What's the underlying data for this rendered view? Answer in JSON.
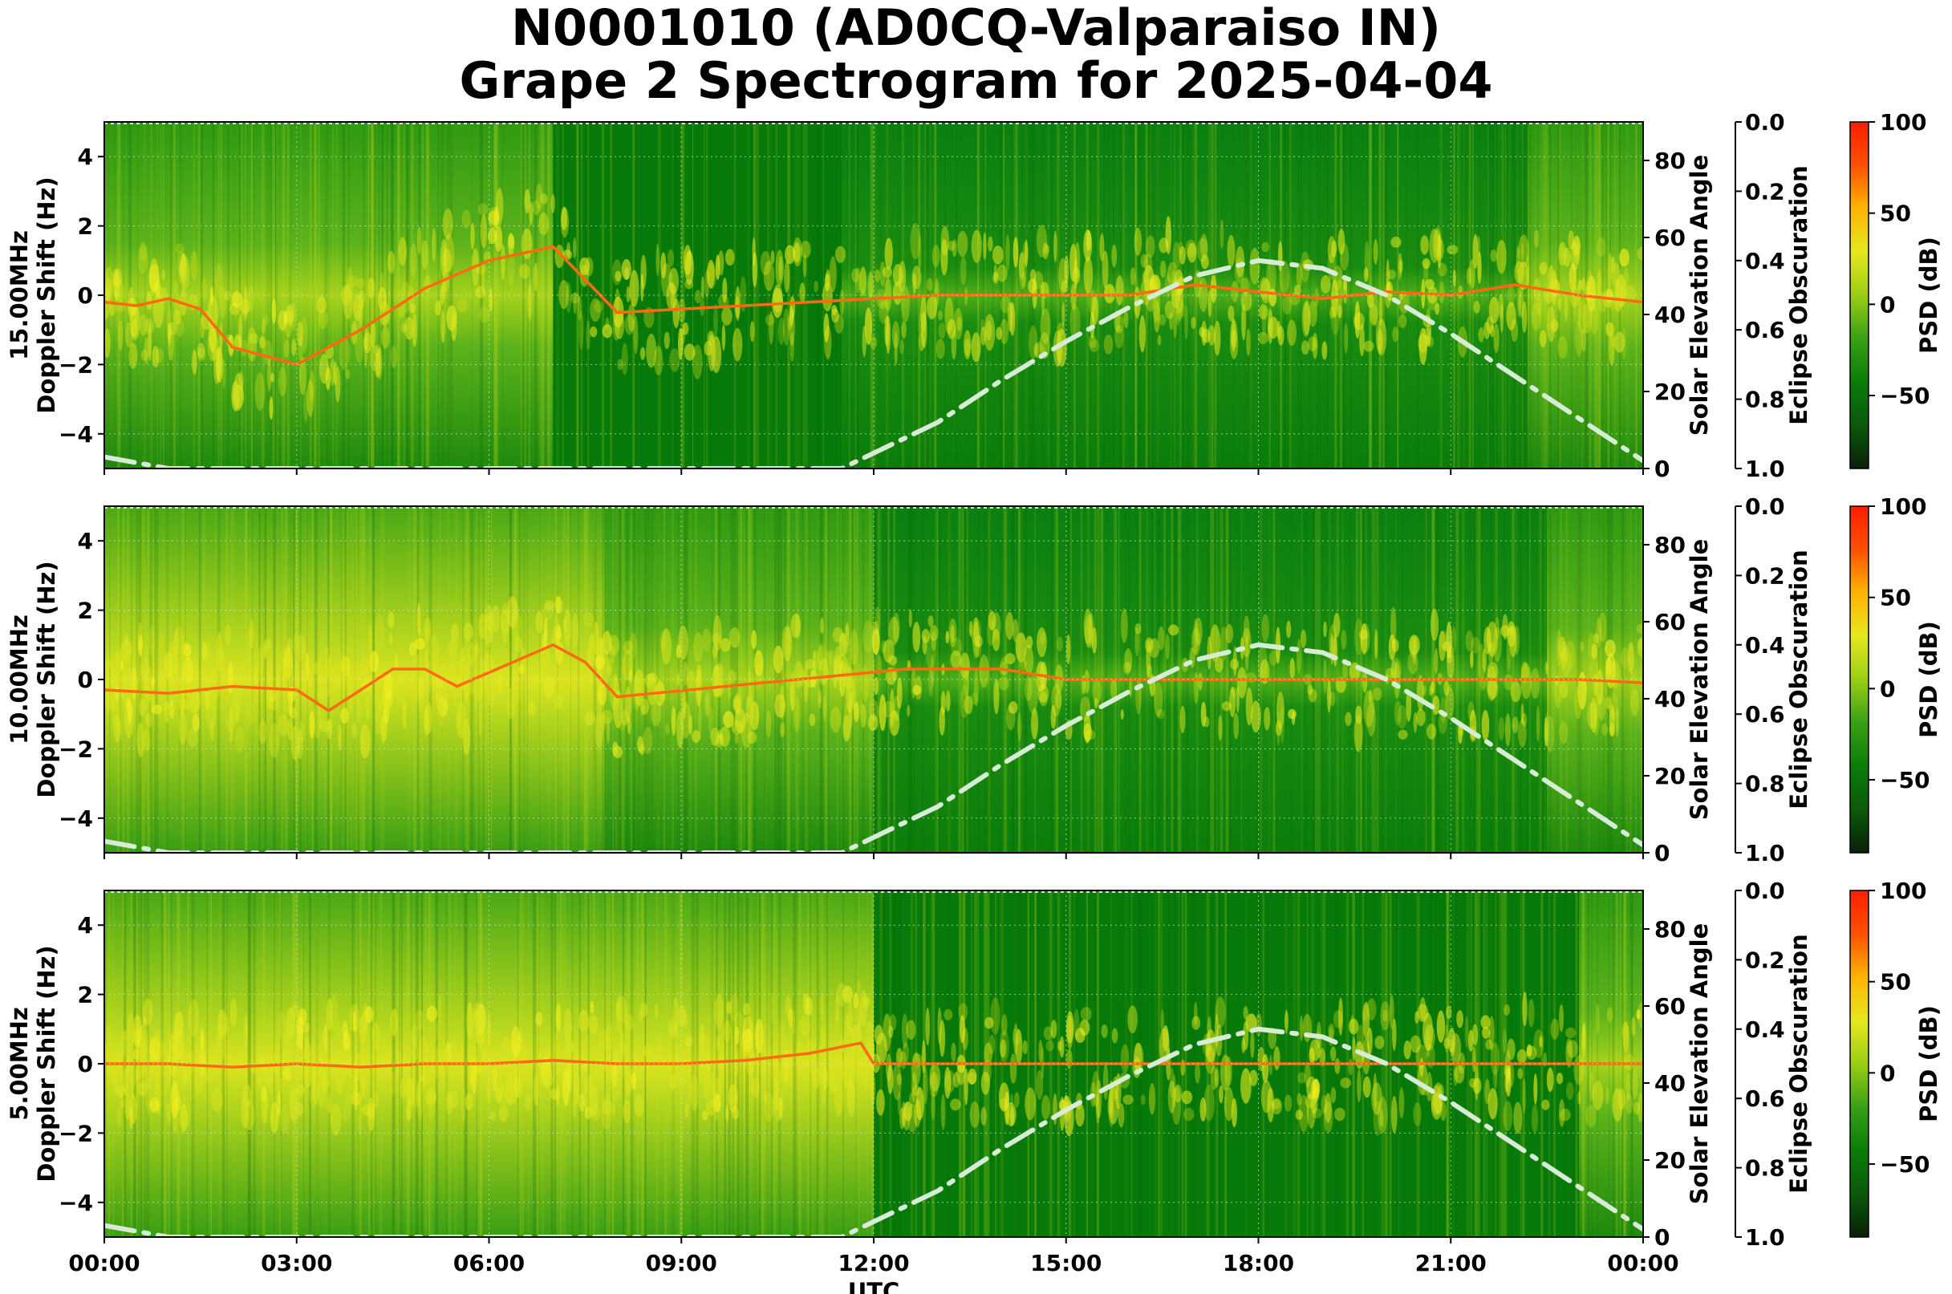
{
  "title": {
    "line1": "N0001010 (AD0CQ-Valparaiso IN)",
    "line2": "Grape 2 Spectrogram for 2025-04-04"
  },
  "colors": {
    "colormap": [
      "#0a1f0a",
      "#0b5a0b",
      "#0a7d0a",
      "#3aa014",
      "#9bcd14",
      "#e6e81e",
      "#ffb400",
      "#ff5000",
      "#ff1e00"
    ],
    "background_green": "#0a7d0a",
    "elevation_curve": "#d6ecd6",
    "signal_trace": "#ff6a10"
  },
  "chart_data": [
    {
      "type": "heatmap",
      "panel": "15.00MHz",
      "ylabel": "15.00MHz\nDoppler Shift (Hz)",
      "xlabel": "",
      "y2label": "Solar Elevation Angle",
      "y3label": "Eclipse Obscuration",
      "colorbar_label": "PSD (dB)",
      "xlim": [
        0,
        24
      ],
      "ylim": [
        -5,
        5
      ],
      "y2lim": [
        0,
        90
      ],
      "y3lim": [
        1.0,
        0.0
      ],
      "clim": [
        -90,
        100
      ],
      "x_ticks": [],
      "y_ticks": [
        "−4",
        "−2",
        "0",
        "2",
        "4"
      ],
      "y2_ticks": [
        "0",
        "20",
        "40",
        "60",
        "80"
      ],
      "y3_ticks": [
        "0.0",
        "0.2",
        "0.4",
        "0.6",
        "0.8",
        "1.0"
      ],
      "cbar_ticks": [
        "100",
        "50",
        "0",
        "−50"
      ],
      "solar_elevation": {
        "x": [
          0,
          1,
          11.5,
          13,
          14,
          15,
          16,
          17,
          18,
          19,
          20,
          21,
          22,
          23,
          24
        ],
        "y": [
          3,
          0,
          0,
          12,
          23,
          33,
          42,
          50,
          54,
          52,
          45,
          35,
          24,
          13,
          2
        ]
      },
      "ionosphere_mode": [
        [
          0,
          "night"
        ],
        [
          1.5,
          "night-dark"
        ],
        [
          7,
          "dark"
        ],
        [
          11.5,
          "day"
        ],
        [
          17.1,
          "day-busy"
        ],
        [
          22.2,
          "dusk"
        ]
      ],
      "trace": {
        "x": [
          0,
          0.5,
          1,
          1.5,
          2,
          3,
          4,
          5,
          6,
          7,
          8,
          13,
          14,
          15,
          16,
          17,
          18,
          19,
          20,
          21,
          22,
          23,
          24
        ],
        "y": [
          -0.2,
          -0.3,
          -0.1,
          -0.4,
          -1.5,
          -2,
          -1,
          0.2,
          1,
          1.4,
          -0.5,
          0,
          0,
          0,
          0,
          0.3,
          0.1,
          -0.1,
          0.1,
          0,
          0.3,
          0,
          -0.2
        ]
      }
    },
    {
      "type": "heatmap",
      "panel": "10.00MHz",
      "ylabel": "10.00MHz\nDoppler Shift (Hz)",
      "xlabel": "",
      "y2label": "Solar Elevation Angle",
      "y3label": "Eclipse Obscuration",
      "colorbar_label": "PSD (dB)",
      "xlim": [
        0,
        24
      ],
      "ylim": [
        -5,
        5
      ],
      "y2lim": [
        0,
        90
      ],
      "y3lim": [
        1.0,
        0.0
      ],
      "clim": [
        -90,
        100
      ],
      "x_ticks": [],
      "y_ticks": [
        "−4",
        "−2",
        "0",
        "2",
        "4"
      ],
      "y2_ticks": [
        "0",
        "20",
        "40",
        "60",
        "80"
      ],
      "y3_ticks": [
        "0.0",
        "0.2",
        "0.4",
        "0.6",
        "0.8",
        "1.0"
      ],
      "cbar_ticks": [
        "100",
        "50",
        "0",
        "−50"
      ],
      "solar_elevation": {
        "x": [
          0,
          1,
          11.5,
          13,
          14,
          15,
          16,
          17,
          18,
          19,
          20,
          21,
          22,
          23,
          24
        ],
        "y": [
          3,
          0,
          0,
          12,
          23,
          33,
          42,
          50,
          54,
          52,
          45,
          35,
          24,
          13,
          2
        ]
      },
      "ionosphere_mode": [
        [
          0,
          "night-bright"
        ],
        [
          7.8,
          "night"
        ],
        [
          12,
          "day"
        ],
        [
          22.5,
          "dusk"
        ]
      ],
      "trace": {
        "x": [
          0,
          1,
          2,
          3,
          3.5,
          4,
          4.5,
          5,
          5.5,
          7,
          7.5,
          8,
          12.5,
          13,
          14,
          15,
          16,
          17,
          18,
          19,
          20,
          21,
          22,
          23,
          24
        ],
        "y": [
          -0.3,
          -0.4,
          -0.2,
          -0.3,
          -0.9,
          -0.3,
          0.3,
          0.3,
          -0.2,
          1,
          0.5,
          -0.5,
          0.3,
          0.3,
          0.3,
          0,
          0,
          0,
          0,
          0,
          0,
          0,
          0,
          0,
          -0.1
        ]
      }
    },
    {
      "type": "heatmap",
      "panel": "5.00MHz",
      "ylabel": "5.00MHz\nDoppler Shift (Hz)",
      "xlabel": "UTC",
      "y2label": "Solar Elevation Angle",
      "y3label": "Eclipse Obscuration",
      "colorbar_label": "PSD (dB)",
      "xlim": [
        0,
        24
      ],
      "ylim": [
        -5,
        5
      ],
      "y2lim": [
        0,
        90
      ],
      "y3lim": [
        1.0,
        0.0
      ],
      "clim": [
        -90,
        100
      ],
      "x_ticks": [
        "00:00",
        "03:00",
        "06:00",
        "09:00",
        "12:00",
        "15:00",
        "18:00",
        "21:00",
        "00:00"
      ],
      "y_ticks": [
        "−4",
        "−2",
        "0",
        "2",
        "4"
      ],
      "y2_ticks": [
        "0",
        "20",
        "40",
        "60",
        "80"
      ],
      "y3_ticks": [
        "0.0",
        "0.2",
        "0.4",
        "0.6",
        "0.8",
        "1.0"
      ],
      "cbar_ticks": [
        "100",
        "50",
        "0",
        "−50"
      ],
      "solar_elevation": {
        "x": [
          0,
          1,
          11.5,
          13,
          14,
          15,
          16,
          17,
          18,
          19,
          20,
          21,
          22,
          23,
          24
        ],
        "y": [
          3,
          0,
          0,
          12,
          23,
          33,
          42,
          50,
          54,
          52,
          45,
          35,
          24,
          13,
          2
        ]
      },
      "ionosphere_mode": [
        [
          0,
          "night-bright"
        ],
        [
          12,
          "day-dark"
        ],
        [
          23,
          "dusk"
        ]
      ],
      "trace": {
        "x": [
          0,
          1,
          2,
          3,
          4,
          5,
          6,
          7,
          8,
          9,
          10,
          11,
          11.8,
          12,
          24
        ],
        "y": [
          0,
          0,
          -0.1,
          0,
          -0.1,
          0,
          0,
          0.1,
          0,
          0,
          0.1,
          0.3,
          0.6,
          0,
          0
        ]
      }
    }
  ]
}
